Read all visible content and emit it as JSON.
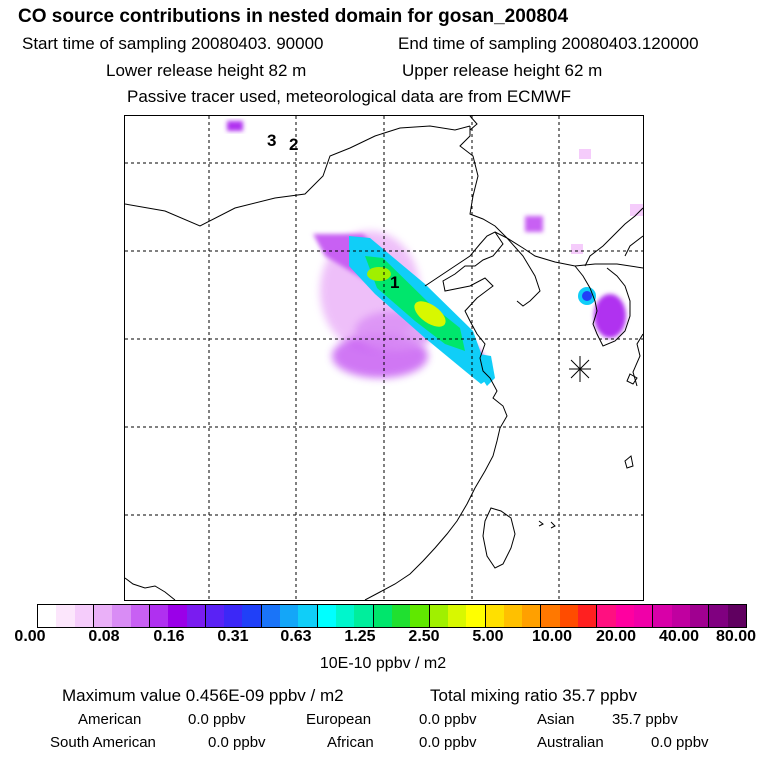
{
  "title": "CO  source contributions in nested domain for gosan_200804",
  "header": {
    "start": "Start time of sampling 20080403. 90000",
    "end": "End time of sampling 20080403.120000",
    "lower": "Lower release height   82 m",
    "upper": "Upper release height   62 m",
    "tracer": "Passive tracer used, meteorological data are from ECMWF"
  },
  "map": {
    "labels": [
      "3",
      "2",
      "1"
    ],
    "receptor_icon": "asterisk-marker"
  },
  "colorbar": {
    "colors": [
      "#ffffff",
      "#fce6fc",
      "#f5ccfb",
      "#eab0f8",
      "#d98cf5",
      "#c860f3",
      "#b030f0",
      "#9a00e8",
      "#7a1cf0",
      "#5a22f5",
      "#3c28f7",
      "#2040f8",
      "#1a74f8",
      "#14a6f8",
      "#10cef8",
      "#00ffff",
      "#00f6cc",
      "#00ee9c",
      "#00e66c",
      "#20e030",
      "#60e800",
      "#a0f000",
      "#d8f800",
      "#ffff00",
      "#ffe000",
      "#ffc000",
      "#ffa000",
      "#ff7800",
      "#ff4c00",
      "#ff2020",
      "#ff1080",
      "#ff00a0",
      "#f000a8",
      "#d800a8",
      "#c000a0",
      "#a00090",
      "#800080",
      "#600060"
    ],
    "ticks": [
      "0.00",
      "0.08",
      "0.16",
      "0.31",
      "0.63",
      "1.25",
      "2.50",
      "5.00",
      "10.00",
      "20.00",
      "40.00",
      "80.00"
    ],
    "unit": "10E-10 ppbv / m2"
  },
  "summary": {
    "max": "Maximum value  0.456E-09 ppbv / m2",
    "total": "Total mixing ratio       35.7 ppbv"
  },
  "regions": [
    {
      "name": "American",
      "value": "0.0 ppbv"
    },
    {
      "name": "European",
      "value": "0.0 ppbv"
    },
    {
      "name": "Asian",
      "value": "35.7 ppbv"
    },
    {
      "name": "South American",
      "value": "0.0 ppbv"
    },
    {
      "name": "African",
      "value": "0.0 ppbv"
    },
    {
      "name": "Australian",
      "value": "0.0 ppbv"
    }
  ]
}
